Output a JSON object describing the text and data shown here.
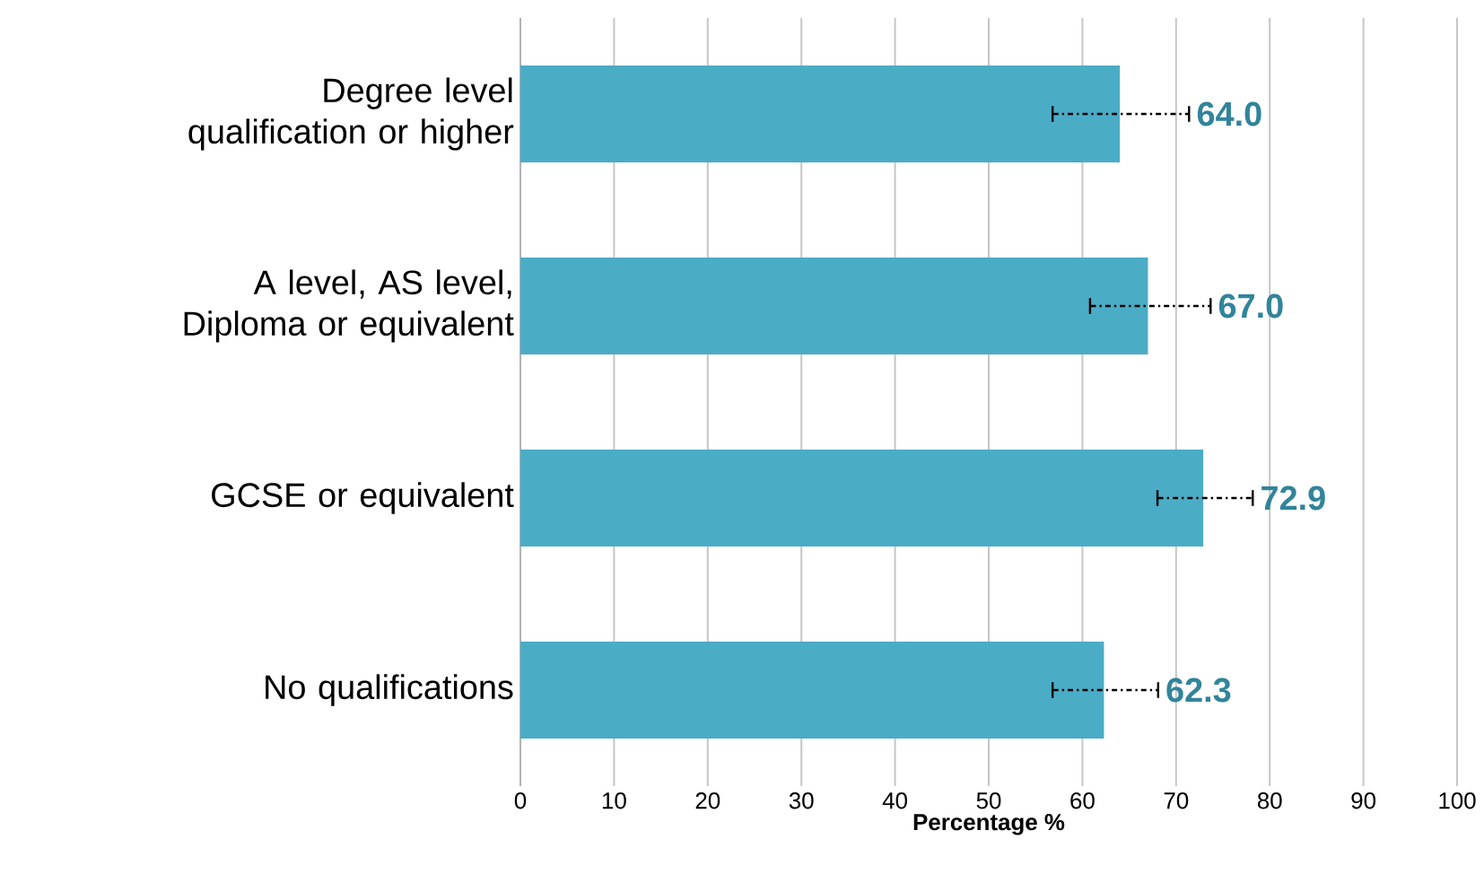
{
  "chart_data": {
    "type": "bar",
    "orientation": "horizontal",
    "xlabel": "Percentage %",
    "categories": [
      "Degree level qualification or higher",
      "A level, AS level, Diploma or equivalent",
      "GCSE or equivalent",
      "No qualifications"
    ],
    "values": [
      64.0,
      67.0,
      72.9,
      62.3
    ],
    "value_labels": [
      "64.0",
      "67.0",
      "72.9",
      "62.3"
    ],
    "errors": [
      [
        56.7,
        71.5
      ],
      [
        60.7,
        73.8
      ],
      [
        67.9,
        78.3
      ],
      [
        56.7,
        68.2
      ]
    ],
    "color": "#4bacc6",
    "xlim": [
      0,
      100
    ],
    "xticks": [
      0,
      10,
      20,
      30,
      40,
      50,
      60,
      70,
      80,
      90,
      100
    ],
    "grid": "x"
  }
}
